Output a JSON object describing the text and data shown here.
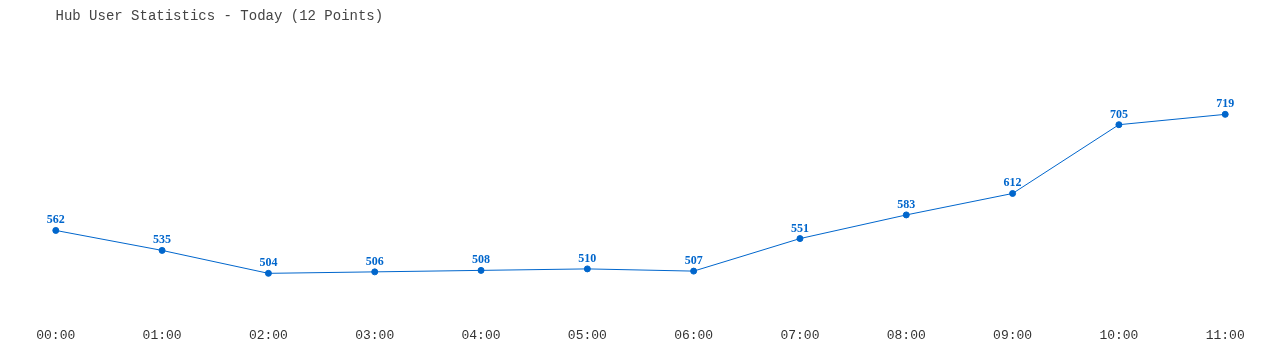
{
  "chart_data": {
    "type": "line",
    "title": "Hub User Statistics - Today (12 Points)",
    "categories": [
      "00:00",
      "01:00",
      "02:00",
      "03:00",
      "04:00",
      "05:00",
      "06:00",
      "07:00",
      "08:00",
      "09:00",
      "10:00",
      "11:00"
    ],
    "series": [
      {
        "color": "#0066cc",
        "values": [
          562,
          535,
          504,
          506,
          508,
          510,
          507,
          551,
          583,
          612,
          705,
          719
        ]
      }
    ],
    "data_labels": true,
    "marker": "circle",
    "line_style": "solid"
  }
}
